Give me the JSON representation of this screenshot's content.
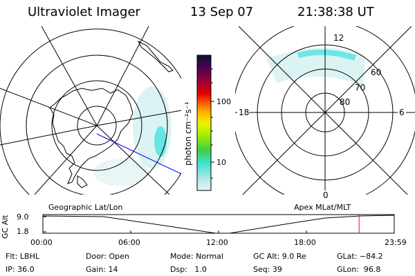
{
  "header": {
    "instrument": "Ultraviolet Imager",
    "date": "13 Sep 07",
    "time": "21:38:38 UT"
  },
  "colorbar": {
    "label": "photon cm⁻²s⁻¹",
    "ticks": [
      "100",
      "10"
    ]
  },
  "maps": {
    "left_label": "Geographic Lat/Lon",
    "right_label": "Apex MLat/MLT",
    "mlt_labels": [
      "12",
      "18",
      "6",
      "0"
    ],
    "mlat_labels": [
      "60",
      "70",
      "80"
    ]
  },
  "altitude_plot": {
    "ylabel": "GC Alt",
    "yticks": [
      "9.0",
      "1.8"
    ],
    "xticks": [
      "00:00",
      "06:00",
      "12:00",
      "18:00",
      "23:59"
    ],
    "current_time_fraction": 0.9
  },
  "info": {
    "filter": "Flt: LBHL",
    "ip": "IP: 36.0",
    "door": "Door: Open",
    "gain": "Gain: 14",
    "mode": "Mode: Normal",
    "dsp": "Dsp:   1.0",
    "gc_alt": "GC Alt: 9.0 Re",
    "seq": "Seq: 39",
    "glat": "GLat: −84.2",
    "glon": "GLon:  96.8"
  },
  "colors": {
    "aurora_cyan": "#40e0e0",
    "aurora_pale": "#c8f0f0",
    "track_blue": "#0000ff",
    "cursor_red": "#ff0000"
  }
}
